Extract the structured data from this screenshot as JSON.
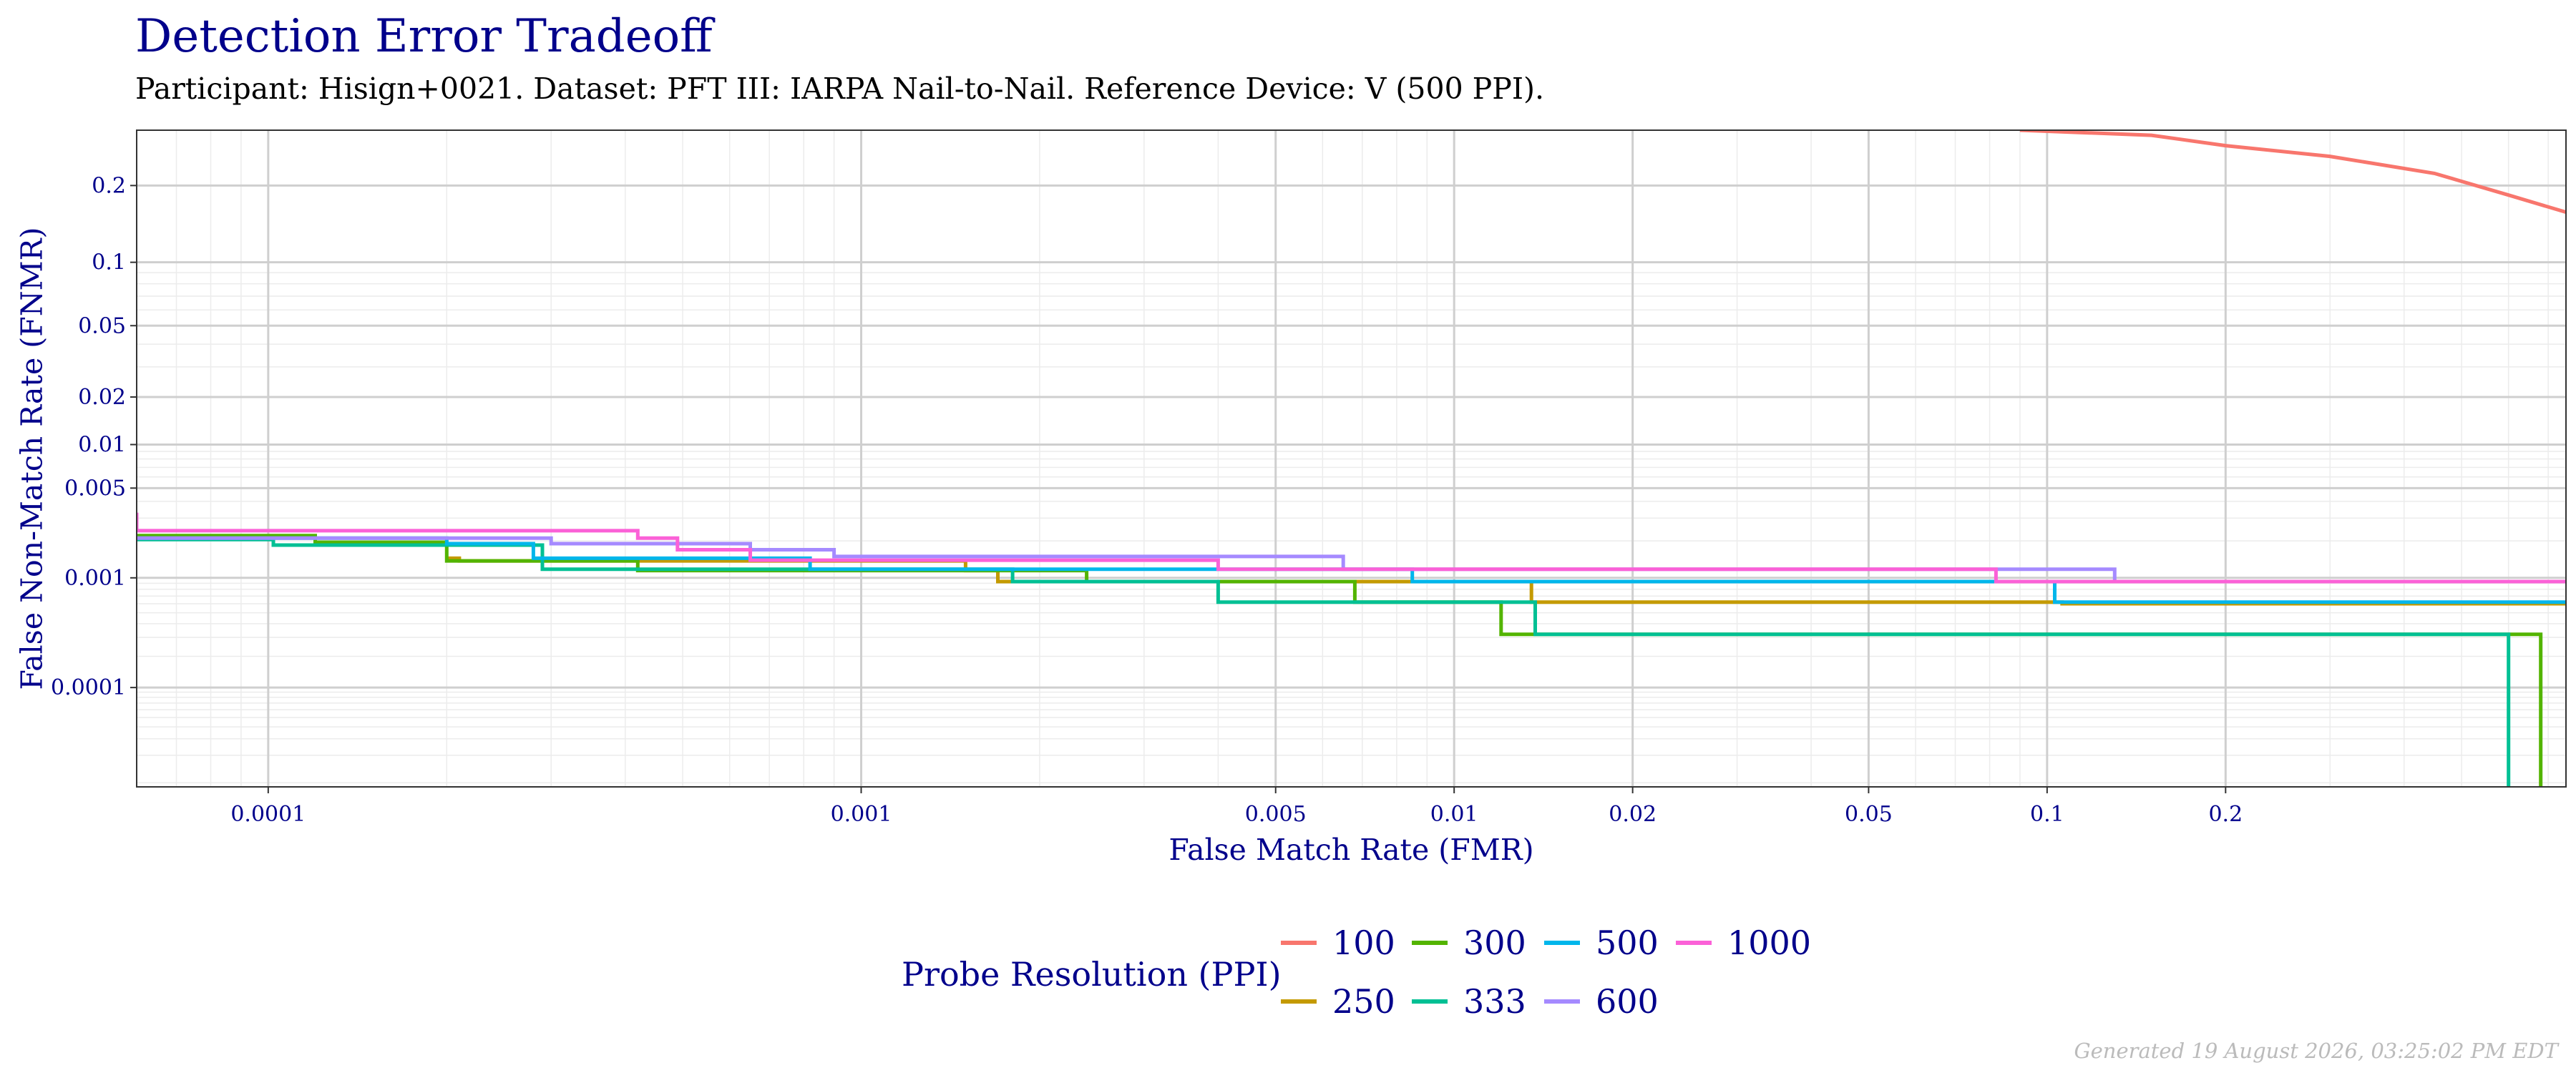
{
  "header": {
    "title": "Detection Error Tradeoff",
    "subtitle": "Participant: Hisign+0021. Dataset: PFT III: IARPA Nail-to-Nail. Reference Device: V (500 PPI)."
  },
  "footer": {
    "generated": "Generated 19 August 2026, 03:25:02 PM EDT"
  },
  "chart_data": {
    "type": "line",
    "step": true,
    "title": "Detection Error Tradeoff",
    "subtitle": "Participant: Hisign+0021. Dataset: PFT III: IARPA Nail-to-Nail. Reference Device: V (500 PPI).",
    "xlabel": "False Match Rate (FMR)",
    "ylabel": "False Non-Match Rate (FNMR)",
    "x_scale": "log",
    "y_scale": "probit",
    "xlim": [
      6e-05,
      0.75
    ],
    "ylim": [
      9e-06,
      0.3
    ],
    "grid": true,
    "x_ticks": [
      {
        "v": 0.0001,
        "label": "0.0001"
      },
      {
        "v": 0.001,
        "label": "0.001"
      },
      {
        "v": 0.005,
        "label": "0.005"
      },
      {
        "v": 0.01,
        "label": "0.01"
      },
      {
        "v": 0.02,
        "label": "0.02"
      },
      {
        "v": 0.05,
        "label": "0.05"
      },
      {
        "v": 0.1,
        "label": "0.1"
      },
      {
        "v": 0.2,
        "label": "0.2"
      }
    ],
    "y_ticks": [
      {
        "v": 0.2,
        "label": "0.2"
      },
      {
        "v": 0.1,
        "label": "0.1"
      },
      {
        "v": 0.05,
        "label": "0.05"
      },
      {
        "v": 0.02,
        "label": "0.02"
      },
      {
        "v": 0.01,
        "label": "0.01"
      },
      {
        "v": 0.005,
        "label": "0.005"
      },
      {
        "v": 0.001,
        "label": "0.001"
      },
      {
        "v": 0.0001,
        "label": "0.0001"
      }
    ],
    "legend": {
      "title": "Probe Resolution (PPI)",
      "position": "bottom",
      "rows": [
        [
          "100",
          "300",
          "500",
          "1000"
        ],
        [
          "250",
          "333",
          "600"
        ]
      ]
    },
    "series": [
      {
        "name": "100",
        "color": "#F8766D",
        "points": [
          [
            0.09,
            0.3
          ],
          [
            0.15,
            0.29
          ],
          [
            0.2,
            0.27
          ],
          [
            0.3,
            0.25
          ],
          [
            0.45,
            0.22
          ],
          [
            0.6,
            0.185
          ],
          [
            0.75,
            0.16
          ]
        ]
      },
      {
        "name": "250",
        "color": "#C49A00",
        "points": [
          [
            0.0002,
            0.00145
          ],
          [
            0.00021,
            0.00145
          ],
          [
            0.00021,
            0.00138
          ],
          [
            0.0015,
            0.00138
          ],
          [
            0.0015,
            0.00115
          ],
          [
            0.0017,
            0.00115
          ],
          [
            0.0017,
            0.00093
          ],
          [
            0.0135,
            0.00093
          ],
          [
            0.0135,
            0.00062
          ],
          [
            0.106,
            0.00062
          ],
          [
            0.106,
            0.0006
          ],
          [
            0.75,
            0.0006
          ]
        ]
      },
      {
        "name": "300",
        "color": "#53B400",
        "points": [
          [
            6e-05,
            0.0022
          ],
          [
            0.00012,
            0.0022
          ],
          [
            0.00012,
            0.00195
          ],
          [
            0.0002,
            0.00195
          ],
          [
            0.0002,
            0.00138
          ],
          [
            0.00042,
            0.00138
          ],
          [
            0.00042,
            0.00115
          ],
          [
            0.0024,
            0.00115
          ],
          [
            0.0024,
            0.00093
          ],
          [
            0.0068,
            0.00093
          ],
          [
            0.0068,
            0.00062
          ],
          [
            0.012,
            0.00062
          ],
          [
            0.012,
            0.00032
          ],
          [
            0.68,
            0.00032
          ],
          [
            0.68,
            9e-06
          ]
        ]
      },
      {
        "name": "333",
        "color": "#00C094",
        "points": [
          [
            6e-05,
            0.00205
          ],
          [
            0.000102,
            0.00205
          ],
          [
            0.000102,
            0.00185
          ],
          [
            0.00029,
            0.00185
          ],
          [
            0.00029,
            0.00118
          ],
          [
            0.0018,
            0.00118
          ],
          [
            0.0018,
            0.00093
          ],
          [
            0.004,
            0.00093
          ],
          [
            0.004,
            0.00062
          ],
          [
            0.0137,
            0.00062
          ],
          [
            0.0137,
            0.00032
          ],
          [
            0.6,
            0.00032
          ],
          [
            0.6,
            9e-06
          ]
        ]
      },
      {
        "name": "500",
        "color": "#00B6EB",
        "points": [
          [
            6e-05,
            0.0021
          ],
          [
            0.0002,
            0.0021
          ],
          [
            0.0002,
            0.0019
          ],
          [
            0.00028,
            0.0019
          ],
          [
            0.00028,
            0.00145
          ],
          [
            0.00082,
            0.00145
          ],
          [
            0.00082,
            0.00118
          ],
          [
            0.0085,
            0.00118
          ],
          [
            0.0085,
            0.00093
          ],
          [
            0.103,
            0.00093
          ],
          [
            0.103,
            0.00062
          ],
          [
            0.75,
            0.00062
          ]
        ]
      },
      {
        "name": "600",
        "color": "#A58AFF",
        "points": [
          [
            6e-05,
            0.0021
          ],
          [
            0.0003,
            0.0021
          ],
          [
            0.0003,
            0.0019
          ],
          [
            0.00065,
            0.0019
          ],
          [
            0.00065,
            0.0017
          ],
          [
            0.0009,
            0.0017
          ],
          [
            0.0009,
            0.0015
          ],
          [
            0.0065,
            0.0015
          ],
          [
            0.0065,
            0.00118
          ],
          [
            0.13,
            0.00118
          ],
          [
            0.13,
            0.00093
          ],
          [
            0.75,
            0.00093
          ]
        ]
      },
      {
        "name": "1000",
        "color": "#FB61D7",
        "points": [
          [
            6e-05,
            0.0033
          ],
          [
            6e-05,
            0.0024
          ],
          [
            0.00042,
            0.0024
          ],
          [
            0.00042,
            0.0021
          ],
          [
            0.00049,
            0.0021
          ],
          [
            0.00049,
            0.0017
          ],
          [
            0.00065,
            0.0017
          ],
          [
            0.00065,
            0.0014
          ],
          [
            0.004,
            0.0014
          ],
          [
            0.004,
            0.00118
          ],
          [
            0.082,
            0.00118
          ],
          [
            0.082,
            0.00093
          ],
          [
            0.75,
            0.00093
          ]
        ]
      }
    ]
  }
}
